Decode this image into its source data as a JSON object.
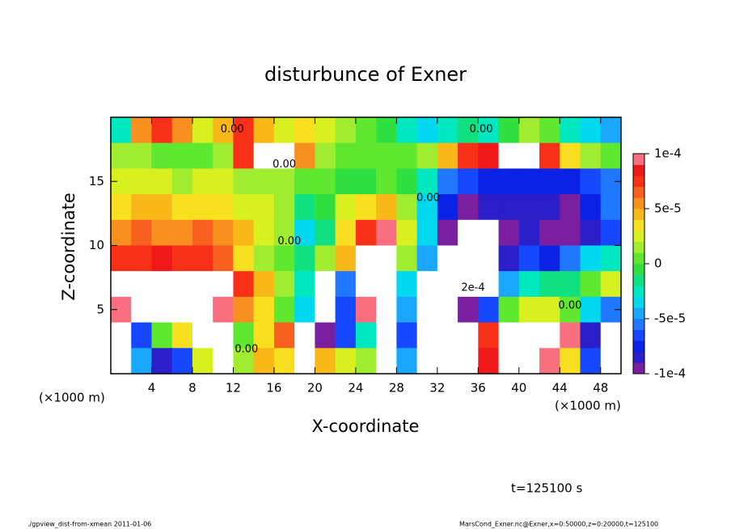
{
  "chart_data": {
    "type": "contour",
    "title": "disturbunce of Exner",
    "x_label": "X-coordinate",
    "y_label": "Z-coordinate",
    "x_unit": "(×1000 m)",
    "y_unit": "(×1000 m)",
    "time_label": "t=125100 s",
    "footer_left": "./gpview_dist-from-xmean  2011-01-06",
    "footer_right": "MarsCond_Exner.nc@Exner,x=0:50000,z=0:20000,t=125100",
    "xlim": [
      0,
      50
    ],
    "ylim": [
      0,
      20
    ],
    "xticks": [
      4,
      8,
      12,
      16,
      20,
      24,
      28,
      32,
      36,
      40,
      44,
      48
    ],
    "yticks": [
      5,
      10,
      15
    ],
    "x": [
      1,
      3,
      5,
      7,
      9,
      11,
      13,
      15,
      17,
      19,
      21,
      23,
      25,
      27,
      29,
      31,
      33,
      35,
      37,
      39,
      41,
      43,
      45,
      47,
      49
    ],
    "z": [
      19,
      17,
      15,
      13,
      11,
      9,
      7,
      5,
      3,
      1
    ],
    "values": [
      [
        -2e-05,
        6e-05,
        8e-05,
        6e-05,
        3e-05,
        5e-05,
        8e-05,
        5e-05,
        3e-05,
        4e-05,
        3e-05,
        2e-05,
        1e-05,
        0,
        -2e-05,
        -3e-05,
        -2e-05,
        -1e-05,
        -2e-05,
        0,
        2e-05,
        1e-05,
        -2e-05,
        -3e-05,
        -4e-05
      ],
      [
        2e-05,
        2e-05,
        1e-05,
        1e-05,
        1e-05,
        2e-05,
        8e-05,
        0.00012,
        0.00012,
        6e-05,
        2e-05,
        1e-05,
        1e-05,
        1e-05,
        1e-05,
        2e-05,
        5e-05,
        8e-05,
        9e-05,
        0.00012,
        0.00011,
        8e-05,
        4e-05,
        2e-05,
        1e-05
      ],
      [
        3e-05,
        3e-05,
        3e-05,
        2e-05,
        3e-05,
        3e-05,
        2e-05,
        2e-05,
        2e-05,
        1e-05,
        1e-05,
        0,
        0,
        1e-05,
        0,
        -2e-05,
        -5e-05,
        -6e-05,
        -7e-05,
        -7e-05,
        -7e-05,
        -7e-05,
        -7e-05,
        -6e-05,
        -5e-05
      ],
      [
        4e-05,
        5e-05,
        5e-05,
        4e-05,
        4e-05,
        4e-05,
        3e-05,
        3e-05,
        2e-05,
        -1e-05,
        0,
        3e-05,
        4e-05,
        5e-05,
        2e-05,
        -3e-05,
        -7e-05,
        -9e-05,
        -8e-05,
        -8e-05,
        -8e-05,
        -8e-05,
        -9e-05,
        -7e-05,
        -5e-05
      ],
      [
        6e-05,
        7e-05,
        6e-05,
        6e-05,
        7e-05,
        6e-05,
        5e-05,
        3e-05,
        2e-05,
        -3e-05,
        -1e-05,
        4e-05,
        8e-05,
        0.0001,
        3e-05,
        -3e-05,
        -0.0001,
        -0.00013,
        -0.00012,
        -9e-05,
        -8e-05,
        -9e-05,
        -0.0001,
        -8e-05,
        -6e-05
      ],
      [
        8e-05,
        8e-05,
        9e-05,
        8e-05,
        8e-05,
        7e-05,
        4e-05,
        2e-05,
        1e-05,
        -1e-05,
        2e-05,
        5e-05,
        0.00012,
        0.00013,
        2e-05,
        -4e-05,
        -0.00012,
        -0.00014,
        -0.00013,
        -8e-05,
        -6e-05,
        -7e-05,
        -5e-05,
        -3e-05,
        -2e-05
      ],
      [
        0.00011,
        0.00012,
        0.00013,
        0.00012,
        0.00012,
        0.00011,
        8e-05,
        5e-05,
        2e-05,
        -2e-05,
        0.00012,
        -5e-05,
        0.00012,
        0.00013,
        -3e-05,
        -0.00012,
        -0.00013,
        -0.00014,
        -0.00012,
        -4e-05,
        -2e-05,
        -1e-05,
        -1e-05,
        1e-05,
        3e-05
      ],
      [
        0.0001,
        0.00012,
        0.00012,
        0.00012,
        0.00013,
        0.0001,
        6e-05,
        4e-05,
        1e-05,
        -3e-05,
        0.00012,
        -6e-05,
        0.0001,
        0.00012,
        -4e-05,
        -0.00012,
        -0.00013,
        -0.0001,
        -6e-05,
        1e-05,
        3e-05,
        3e-05,
        1e-05,
        -3e-05,
        -5e-05
      ],
      [
        -0.00012,
        -6e-05,
        1e-05,
        4e-05,
        0.00012,
        0.00011,
        1e-05,
        4e-05,
        7e-05,
        0.00012,
        -0.0001,
        -6e-05,
        -2e-05,
        0.00012,
        -6e-05,
        -0.00013,
        -0.00013,
        -0.00012,
        8e-05,
        0.00012,
        0.00012,
        0.00012,
        0.0001,
        -8e-05,
        -0.00012
      ],
      [
        -0.00013,
        -4e-05,
        -8e-05,
        -6e-05,
        3e-05,
        0.00012,
        2e-05,
        5e-05,
        4e-05,
        0.00012,
        5e-05,
        3e-05,
        2e-05,
        0.00012,
        -4e-05,
        -0.00013,
        -0.00013,
        -0.00012,
        9e-05,
        0.00012,
        0.00011,
        0.0001,
        4e-05,
        -6e-05,
        -0.00012
      ]
    ],
    "levels": [
      -0.0001,
      -9e-05,
      -8e-05,
      -7e-05,
      -6e-05,
      -5e-05,
      -4e-05,
      -3e-05,
      -2e-05,
      -1e-05,
      0,
      1e-05,
      2e-05,
      3e-05,
      4e-05,
      5e-05,
      6e-05,
      7e-05,
      8e-05,
      9e-05,
      0.0001
    ],
    "colors": [
      "#7a1fa0",
      "#2a1fc8",
      "#0a22e6",
      "#1548ff",
      "#1f78ff",
      "#1aa8ff",
      "#00d8f0",
      "#00e8c0",
      "#10e080",
      "#30e040",
      "#60e830",
      "#a0ec30",
      "#d8f020",
      "#f8e020",
      "#f8b818",
      "#f89020",
      "#f86020",
      "#f83018",
      "#f01818",
      "#f87080"
    ],
    "out_of_range_color": "#ffffff",
    "colorbar_ticks": [
      {
        "value": 0.0001,
        "label": "1e-4"
      },
      {
        "value": 5e-05,
        "label": "5e-5"
      },
      0,
      {
        "value": -5e-05,
        "label": "-5e-5"
      },
      {
        "value": -0.0001,
        "label": "-1e-4"
      }
    ],
    "contour_labels": [
      {
        "text": "0.00",
        "x": 11.9,
        "z": 19.05
      },
      {
        "text": "0.00",
        "x": 36.3,
        "z": 19.05
      },
      {
        "text": "0.00",
        "x": 17,
        "z": 16.3
      },
      {
        "text": "0.00",
        "x": 31.1,
        "z": 13.7
      },
      {
        "text": "0.00",
        "x": 17.5,
        "z": 10.3
      },
      {
        "text": "0.00",
        "x": 45,
        "z": 5.3
      },
      {
        "text": "2e-4",
        "x": 35.5,
        "z": 6.7
      },
      {
        "text": "0.00",
        "x": 13.3,
        "z": 1.9
      }
    ]
  }
}
